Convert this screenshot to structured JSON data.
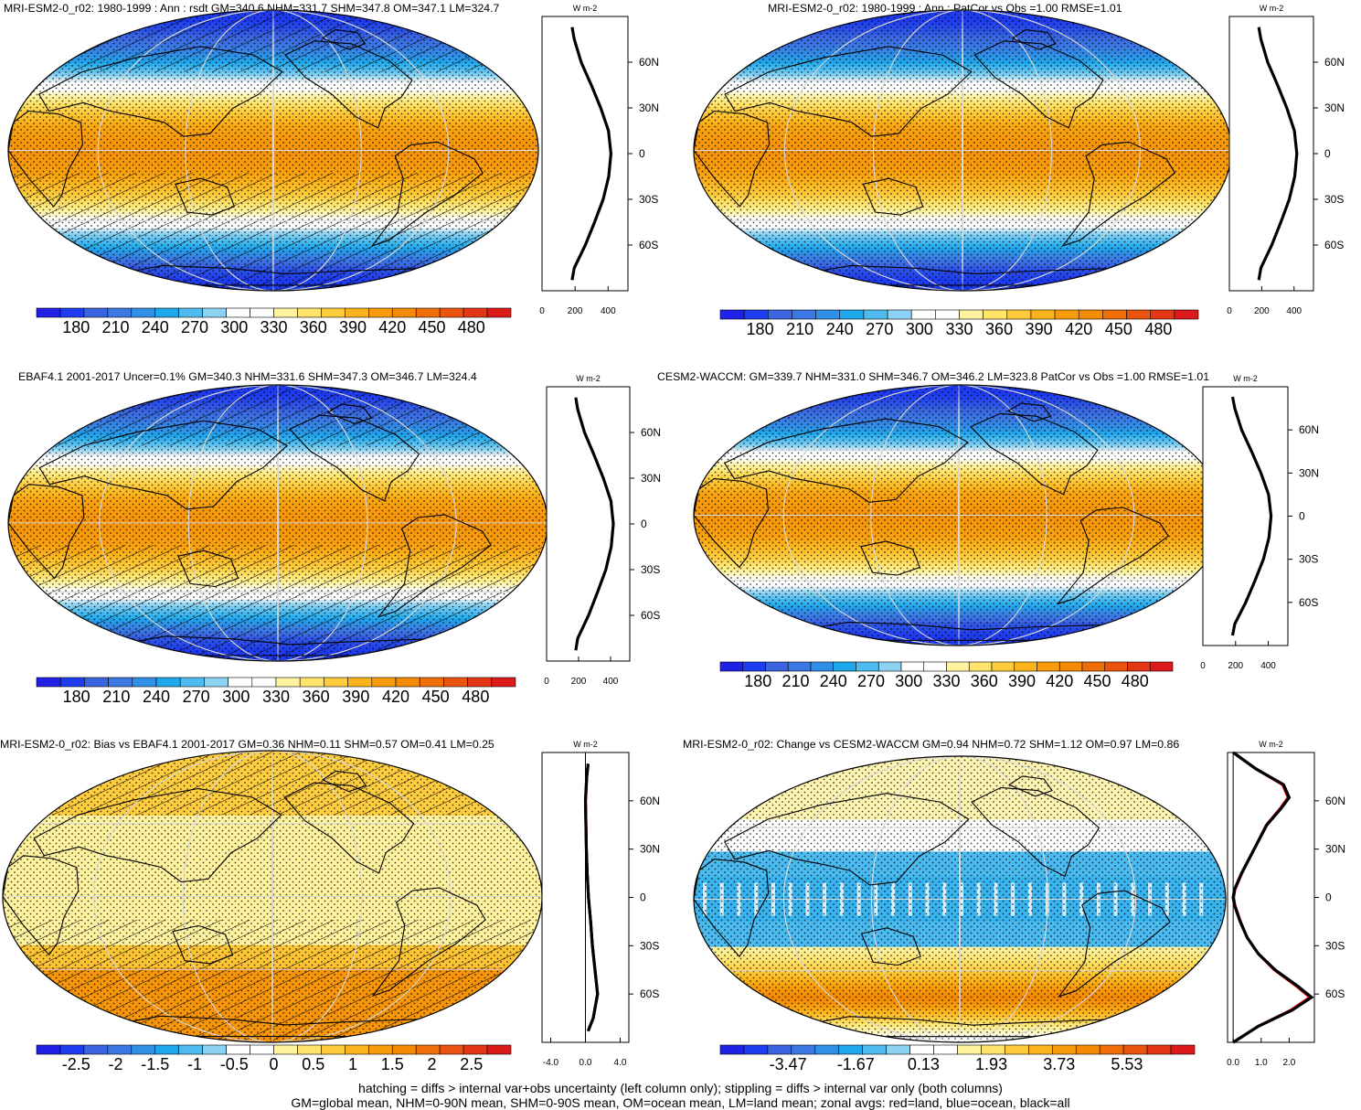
{
  "colors": {
    "abs_palette": [
      "#2020e6",
      "#1e3cf0",
      "#3a64e0",
      "#3c78e4",
      "#3090e6",
      "#1ea8ec",
      "#4ebcf0",
      "#8cd2f2",
      "#ffffff",
      "#ffffff",
      "#fff3a0",
      "#ffe36a",
      "#fecb3c",
      "#fcb41c",
      "#f89c0c",
      "#f48a06",
      "#ef6e08",
      "#ea5410",
      "#e43614",
      "#dd1a1a"
    ],
    "bias_palette": [
      "#2020e6",
      "#1e3cf0",
      "#3a64e0",
      "#3c78e4",
      "#3090e6",
      "#1ea8ec",
      "#4ebcf0",
      "#8cd2f2",
      "#ffffff",
      "#ffffff",
      "#fff3a0",
      "#ffe36a",
      "#fecb3c",
      "#fcb41c",
      "#f89c0c",
      "#f48a06",
      "#ef6e08",
      "#ea5410",
      "#e43614",
      "#dd1a1a"
    ],
    "zonal_all": "#000000",
    "zonal_land": "#ff0000",
    "zonal_ocean": "#0000ff"
  },
  "chart_data": [
    {
      "id": "p1",
      "type": "heatmap",
      "title": "MRI-ESM2-0_r02: 1980-1999 : Ann : rsdt GM=340.6 NHM=331.7 SHM=347.8 OM=347.1 LM=324.7",
      "field": "rsdt",
      "units": "W m-2",
      "stats": {
        "GM": 340.6,
        "NHM": 331.7,
        "SHM": 347.8,
        "OM": 347.1,
        "LM": 324.7
      },
      "hatching": true,
      "stippling": true,
      "colorbar": {
        "labels": [
          "180",
          "210",
          "240",
          "270",
          "300",
          "330",
          "360",
          "390",
          "420",
          "450",
          "480"
        ],
        "range": [
          165,
          495
        ]
      },
      "zonal": {
        "xlabels": [
          "0",
          "200",
          "400"
        ],
        "xlim": [
          0,
          520
        ],
        "ylabels": [
          "60N",
          "30N",
          "0",
          "30S",
          "60S"
        ],
        "ylim": [
          -90,
          90
        ],
        "lat": [
          -83,
          -75,
          -60,
          -45,
          -30,
          -15,
          0,
          15,
          30,
          45,
          60,
          75,
          83
        ],
        "values": [
          182,
          195,
          262,
          318,
          370,
          404,
          417,
          402,
          355,
          298,
          237,
          195,
          182
        ]
      }
    },
    {
      "id": "p2",
      "type": "heatmap",
      "title": "MRI-ESM2-0_r02: 1980-1999 : Ann : PatCor vs Obs =1.00 RMSE=1.01",
      "field": "rsdt",
      "units": "W m-2",
      "stats": {
        "PatCor": 1.0,
        "RMSE": 1.01
      },
      "hatching": false,
      "stippling": true,
      "colorbar": {
        "labels": [
          "180",
          "210",
          "240",
          "270",
          "300",
          "330",
          "360",
          "390",
          "420",
          "450",
          "480"
        ],
        "range": [
          165,
          495
        ]
      },
      "zonal": {
        "xlabels": [
          "0",
          "200",
          "400"
        ],
        "xlim": [
          0,
          520
        ],
        "ylabels": [
          "60N",
          "30N",
          "0",
          "30S",
          "60S"
        ],
        "ylim": [
          -90,
          90
        ],
        "lat": [
          -83,
          -75,
          -60,
          -45,
          -30,
          -15,
          0,
          15,
          30,
          45,
          60,
          75,
          83
        ],
        "values": [
          182,
          195,
          262,
          318,
          370,
          404,
          417,
          402,
          355,
          298,
          237,
          195,
          182
        ]
      }
    },
    {
      "id": "p3",
      "type": "heatmap",
      "title": "EBAF4.1 2001-2017 Uncer=0.1% GM=340.3 NHM=331.6 SHM=347.3 OM=346.7 LM=324.4",
      "field": "rsdt",
      "units": "W m-2",
      "stats": {
        "GM": 340.3,
        "NHM": 331.6,
        "SHM": 347.3,
        "OM": 346.7,
        "LM": 324.4
      },
      "hatching": true,
      "stippling": true,
      "colorbar": {
        "labels": [
          "180",
          "210",
          "240",
          "270",
          "300",
          "330",
          "360",
          "390",
          "420",
          "450",
          "480"
        ],
        "range": [
          165,
          495
        ]
      },
      "zonal": {
        "xlabels": [
          "0",
          "200",
          "400"
        ],
        "xlim": [
          0,
          520
        ],
        "ylabels": [
          "60N",
          "30N",
          "0",
          "30S",
          "60S"
        ],
        "ylim": [
          -90,
          90
        ],
        "lat": [
          -83,
          -75,
          -60,
          -45,
          -30,
          -15,
          0,
          15,
          30,
          45,
          60,
          75,
          83
        ],
        "values": [
          182,
          195,
          262,
          318,
          370,
          404,
          417,
          402,
          355,
          298,
          237,
          195,
          182
        ]
      }
    },
    {
      "id": "p4",
      "type": "heatmap",
      "title": "CESM2-WACCM: GM=339.7 NHM=331.0 SHM=346.7 OM=346.2 LM=323.8 PatCor vs Obs =1.00 RMSE=1.01",
      "field": "rsdt",
      "units": "W m-2",
      "stats": {
        "GM": 339.7,
        "NHM": 331.0,
        "SHM": 346.7,
        "OM": 346.2,
        "LM": 323.8,
        "PatCor": 1.0,
        "RMSE": 1.01
      },
      "hatching": false,
      "stippling": true,
      "colorbar": {
        "labels": [
          "180",
          "210",
          "240",
          "270",
          "300",
          "330",
          "360",
          "390",
          "420",
          "450",
          "480"
        ],
        "range": [
          165,
          495
        ]
      },
      "zonal": {
        "xlabels": [
          "0",
          "200",
          "400"
        ],
        "xlim": [
          0,
          520
        ],
        "ylabels": [
          "60N",
          "30N",
          "0",
          "30S",
          "60S"
        ],
        "ylim": [
          -90,
          90
        ],
        "lat": [
          -83,
          -75,
          -60,
          -45,
          -30,
          -15,
          0,
          15,
          30,
          45,
          60,
          75,
          83
        ],
        "values": [
          182,
          195,
          262,
          318,
          370,
          404,
          417,
          402,
          355,
          298,
          237,
          195,
          182
        ]
      }
    },
    {
      "id": "p5",
      "type": "heatmap",
      "title": "MRI-ESM2-0_r02: Bias vs EBAF4.1 2001-2017 GM=0.36 NHM=0.11 SHM=0.57 OM=0.41 LM=0.25",
      "field": "rsdt bias",
      "units": "W m-2",
      "stats": {
        "GM": 0.36,
        "NHM": 0.11,
        "SHM": 0.57,
        "OM": 0.41,
        "LM": 0.25
      },
      "hatching": true,
      "stippling": true,
      "colorbar": {
        "labels": [
          "-2.5",
          "-2",
          "-1.5",
          "-1",
          "-0.5",
          "0",
          "0.5",
          "1",
          "1.5",
          "2",
          "2.5"
        ],
        "range": [
          -2.75,
          2.75
        ]
      },
      "zonal": {
        "xlabels": [
          "-4.0",
          "0.0",
          "4.0"
        ],
        "xlim": [
          -5,
          5
        ],
        "ylabels": [
          "60N",
          "30N",
          "0",
          "30S",
          "60S"
        ],
        "ylim": [
          -90,
          90
        ],
        "lat": [
          -83,
          -75,
          -60,
          -45,
          -30,
          -15,
          0,
          15,
          30,
          45,
          60,
          75,
          83
        ],
        "values": [
          0.3,
          0.9,
          1.4,
          1.1,
          0.8,
          0.6,
          0.35,
          0.2,
          0.1,
          0.05,
          0.0,
          0.15,
          0.3
        ]
      }
    },
    {
      "id": "p6",
      "type": "heatmap",
      "title": "MRI-ESM2-0_r02: Change vs CESM2-WACCM GM=0.94 NHM=0.72 SHM=1.12 OM=0.97 LM=0.86",
      "field": "rsdt change",
      "units": "W m-2",
      "stats": {
        "GM": 0.94,
        "NHM": 0.72,
        "SHM": 1.12,
        "OM": 0.97,
        "LM": 0.86
      },
      "hatching": false,
      "stippling": true,
      "colorbar": {
        "labels": [
          "-3.47",
          "-1.67",
          "0.13",
          "1.93",
          "3.73",
          "5.53"
        ],
        "range": [
          -4.37,
          6.43
        ]
      },
      "zonal": {
        "xlabels": [
          "0.0",
          "1.0",
          "2.0"
        ],
        "xlim": [
          -0.2,
          2.9
        ],
        "ylabels": [
          "60N",
          "30N",
          "0",
          "30S",
          "60S"
        ],
        "ylim": [
          -90,
          90
        ],
        "lat": [
          -90,
          -80,
          -70,
          -62,
          -55,
          -45,
          -35,
          -25,
          -15,
          -5,
          0,
          5,
          15,
          25,
          35,
          45,
          55,
          62,
          70,
          80,
          90
        ],
        "values": [
          0.0,
          0.9,
          2.1,
          2.8,
          2.3,
          1.5,
          0.9,
          0.5,
          0.25,
          0.05,
          0.0,
          0.05,
          0.3,
          0.6,
          0.9,
          1.2,
          1.7,
          2.0,
          1.8,
          0.8,
          0.0
        ]
      }
    }
  ],
  "footer": {
    "line1": "hatching = diffs > internal var+obs uncertainty (left column only); stippling = diffs > internal var only (both columns)",
    "line2": "GM=global mean, NHM=0-90N mean, SHM=0-90S mean, OM=ocean mean, LM=land mean; zonal avgs: red=land, blue=ocean, black=all"
  }
}
